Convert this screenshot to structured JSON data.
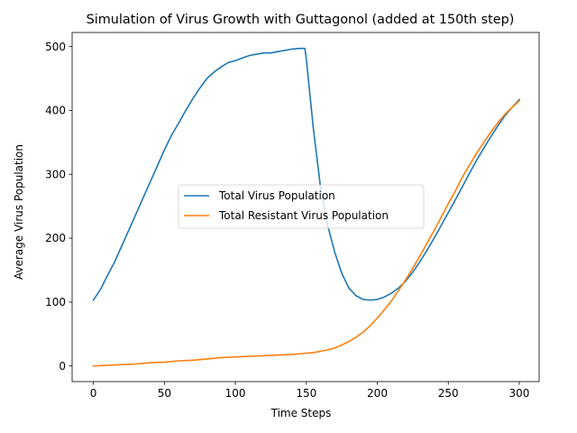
{
  "chart_data": {
    "type": "line",
    "title": "Simulation of Virus Growth with Guttagonol (added at 150th step)",
    "xlabel": "Time Steps",
    "ylabel": "Average Virus Population",
    "xlim": [
      -15,
      314
    ],
    "ylim": [
      -24.5,
      522
    ],
    "xticks": [
      0,
      50,
      100,
      150,
      200,
      250,
      300
    ],
    "xtick_labels": [
      "0",
      "50",
      "100",
      "150",
      "200",
      "250",
      "300"
    ],
    "yticks": [
      0,
      100,
      200,
      300,
      400,
      500
    ],
    "ytick_labels": [
      "0",
      "100",
      "200",
      "300",
      "400",
      "500"
    ],
    "grid": false,
    "legend_position": "center",
    "series": [
      {
        "name": "Total Virus Population",
        "color": "#1f77b4",
        "x": [
          0,
          5,
          10,
          15,
          20,
          25,
          30,
          35,
          40,
          45,
          50,
          55,
          60,
          65,
          70,
          75,
          80,
          85,
          90,
          95,
          100,
          105,
          110,
          115,
          120,
          125,
          130,
          135,
          140,
          145,
          149,
          150,
          155,
          160,
          165,
          170,
          175,
          180,
          185,
          190,
          195,
          200,
          205,
          210,
          215,
          220,
          225,
          230,
          235,
          240,
          245,
          250,
          255,
          260,
          265,
          270,
          275,
          280,
          285,
          290,
          295,
          300
        ],
        "y": [
          103,
          120,
          142,
          163,
          188,
          213,
          238,
          263,
          288,
          313,
          338,
          361,
          380,
          400,
          418,
          435,
          450,
          460,
          468,
          475,
          478,
          482,
          486,
          488,
          490,
          490,
          492,
          494,
          496,
          497,
          497,
          480,
          370,
          280,
          220,
          178,
          145,
          122,
          110,
          104,
          103,
          104,
          108,
          114,
          122,
          133,
          147,
          163,
          181,
          200,
          220,
          240,
          260,
          281,
          302,
          322,
          341,
          359,
          376,
          392,
          405,
          417
        ]
      },
      {
        "name": "Total Resistant Virus Population",
        "color": "#ff7f0e",
        "x": [
          0,
          10,
          20,
          30,
          40,
          50,
          60,
          70,
          80,
          90,
          100,
          110,
          120,
          130,
          140,
          150,
          155,
          160,
          165,
          170,
          175,
          180,
          185,
          190,
          195,
          200,
          205,
          210,
          215,
          220,
          225,
          230,
          235,
          240,
          245,
          250,
          255,
          260,
          265,
          270,
          275,
          280,
          285,
          290,
          295,
          300
        ],
        "y": [
          0,
          1,
          2,
          3,
          5,
          6,
          8,
          9,
          11,
          13,
          14,
          15,
          16,
          17,
          18,
          20,
          21,
          23,
          25,
          28,
          33,
          38,
          45,
          53,
          63,
          75,
          88,
          102,
          118,
          135,
          153,
          172,
          192,
          212,
          233,
          254,
          274,
          296,
          315,
          333,
          350,
          366,
          381,
          394,
          405,
          415
        ]
      }
    ]
  }
}
